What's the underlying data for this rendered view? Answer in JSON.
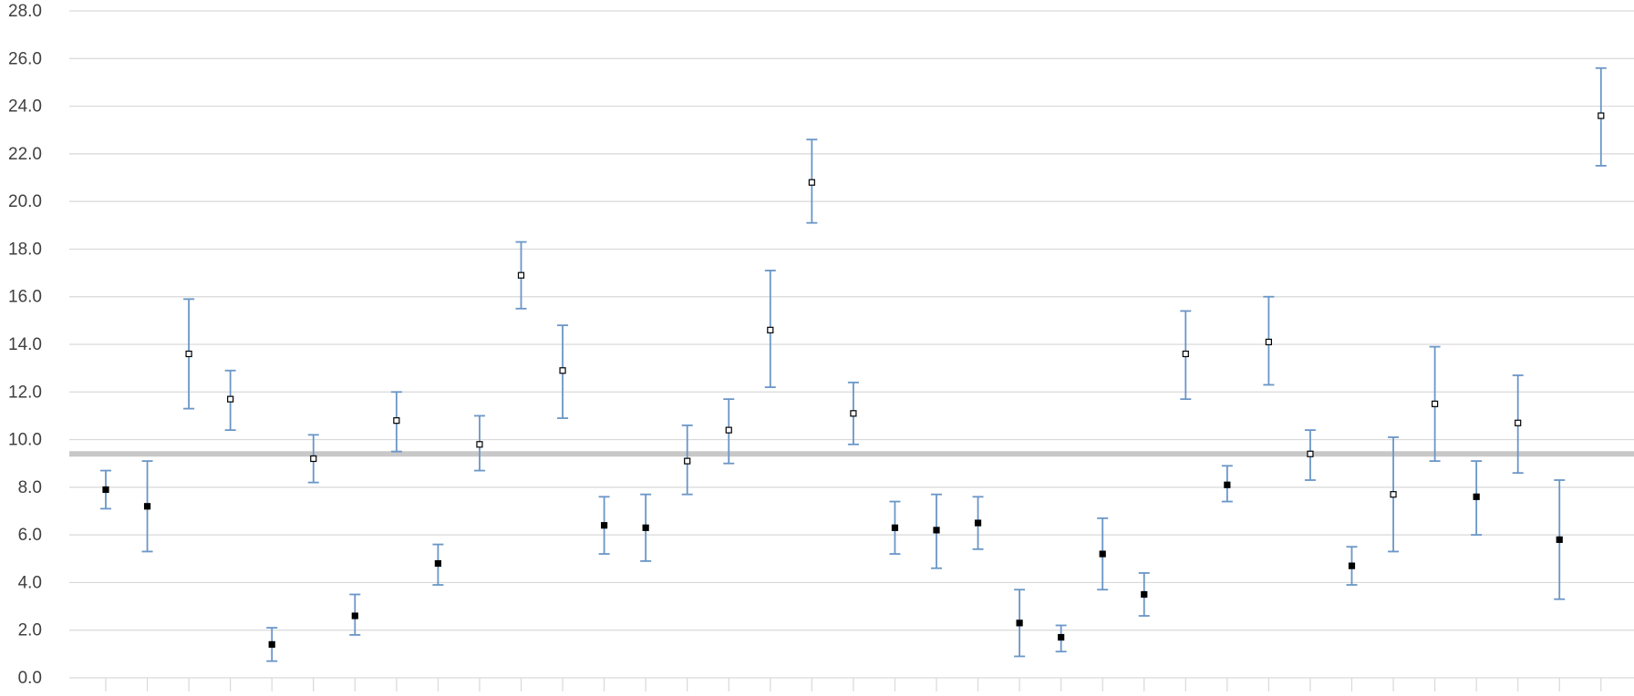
{
  "chart_data": {
    "type": "scatter",
    "subtype": "point-with-error-bars",
    "title": "",
    "xlabel": "",
    "ylabel": "",
    "ylim": [
      0,
      28
    ],
    "yticks": [
      "0.0",
      "2.0",
      "4.0",
      "6.0",
      "8.0",
      "10.0",
      "12.0",
      "14.0",
      "16.0",
      "18.0",
      "20.0",
      "22.0",
      "24.0",
      "26.0",
      "28.0"
    ],
    "grid": true,
    "legend": "none",
    "reference_line": {
      "y": 9.4,
      "color": "#c8c8c8"
    },
    "colors": {
      "error_bar": "#6a96c7",
      "marker_filled": "#000000",
      "marker_hollow": "#ffffff",
      "gridline": "#d9d9d9",
      "axis_text": "#404040"
    },
    "points": [
      {
        "y": 7.9,
        "low": 7.1,
        "high": 8.7,
        "hollow": false
      },
      {
        "y": 7.2,
        "low": 5.3,
        "high": 9.1,
        "hollow": false
      },
      {
        "y": 13.6,
        "low": 11.3,
        "high": 15.9,
        "hollow": true
      },
      {
        "y": 11.7,
        "low": 10.4,
        "high": 12.9,
        "hollow": true
      },
      {
        "y": 1.4,
        "low": 0.7,
        "high": 2.1,
        "hollow": false
      },
      {
        "y": 9.2,
        "low": 8.2,
        "high": 10.2,
        "hollow": true
      },
      {
        "y": 2.6,
        "low": 1.8,
        "high": 3.5,
        "hollow": false
      },
      {
        "y": 10.8,
        "low": 9.5,
        "high": 12.0,
        "hollow": true
      },
      {
        "y": 4.8,
        "low": 3.9,
        "high": 5.6,
        "hollow": false
      },
      {
        "y": 9.8,
        "low": 8.7,
        "high": 11.0,
        "hollow": true
      },
      {
        "y": 16.9,
        "low": 15.5,
        "high": 18.3,
        "hollow": true
      },
      {
        "y": 12.9,
        "low": 10.9,
        "high": 14.8,
        "hollow": true
      },
      {
        "y": 6.4,
        "low": 5.2,
        "high": 7.6,
        "hollow": false
      },
      {
        "y": 6.3,
        "low": 4.9,
        "high": 7.7,
        "hollow": false
      },
      {
        "y": 9.1,
        "low": 7.7,
        "high": 10.6,
        "hollow": true
      },
      {
        "y": 10.4,
        "low": 9.0,
        "high": 11.7,
        "hollow": true
      },
      {
        "y": 14.6,
        "low": 12.2,
        "high": 17.1,
        "hollow": true
      },
      {
        "y": 20.8,
        "low": 19.1,
        "high": 22.6,
        "hollow": true
      },
      {
        "y": 11.1,
        "low": 9.8,
        "high": 12.4,
        "hollow": true
      },
      {
        "y": 6.3,
        "low": 5.2,
        "high": 7.4,
        "hollow": false
      },
      {
        "y": 6.2,
        "low": 4.6,
        "high": 7.7,
        "hollow": false
      },
      {
        "y": 6.5,
        "low": 5.4,
        "high": 7.6,
        "hollow": false
      },
      {
        "y": 2.3,
        "low": 0.9,
        "high": 3.7,
        "hollow": false
      },
      {
        "y": 1.7,
        "low": 1.1,
        "high": 2.2,
        "hollow": false
      },
      {
        "y": 5.2,
        "low": 3.7,
        "high": 6.7,
        "hollow": false
      },
      {
        "y": 3.5,
        "low": 2.6,
        "high": 4.4,
        "hollow": false
      },
      {
        "y": 13.6,
        "low": 11.7,
        "high": 15.4,
        "hollow": true
      },
      {
        "y": 8.1,
        "low": 7.4,
        "high": 8.9,
        "hollow": false
      },
      {
        "y": 14.1,
        "low": 12.3,
        "high": 16.0,
        "hollow": true
      },
      {
        "y": 9.4,
        "low": 8.3,
        "high": 10.4,
        "hollow": true
      },
      {
        "y": 4.7,
        "low": 3.9,
        "high": 5.5,
        "hollow": false
      },
      {
        "y": 7.7,
        "low": 5.3,
        "high": 10.1,
        "hollow": true
      },
      {
        "y": 11.5,
        "low": 9.1,
        "high": 13.9,
        "hollow": true
      },
      {
        "y": 7.6,
        "low": 6.0,
        "high": 9.1,
        "hollow": false
      },
      {
        "y": 10.7,
        "low": 8.6,
        "high": 12.7,
        "hollow": true
      },
      {
        "y": 5.8,
        "low": 3.3,
        "high": 8.3,
        "hollow": false
      },
      {
        "y": 23.6,
        "low": 21.5,
        "high": 25.6,
        "hollow": true
      }
    ]
  }
}
